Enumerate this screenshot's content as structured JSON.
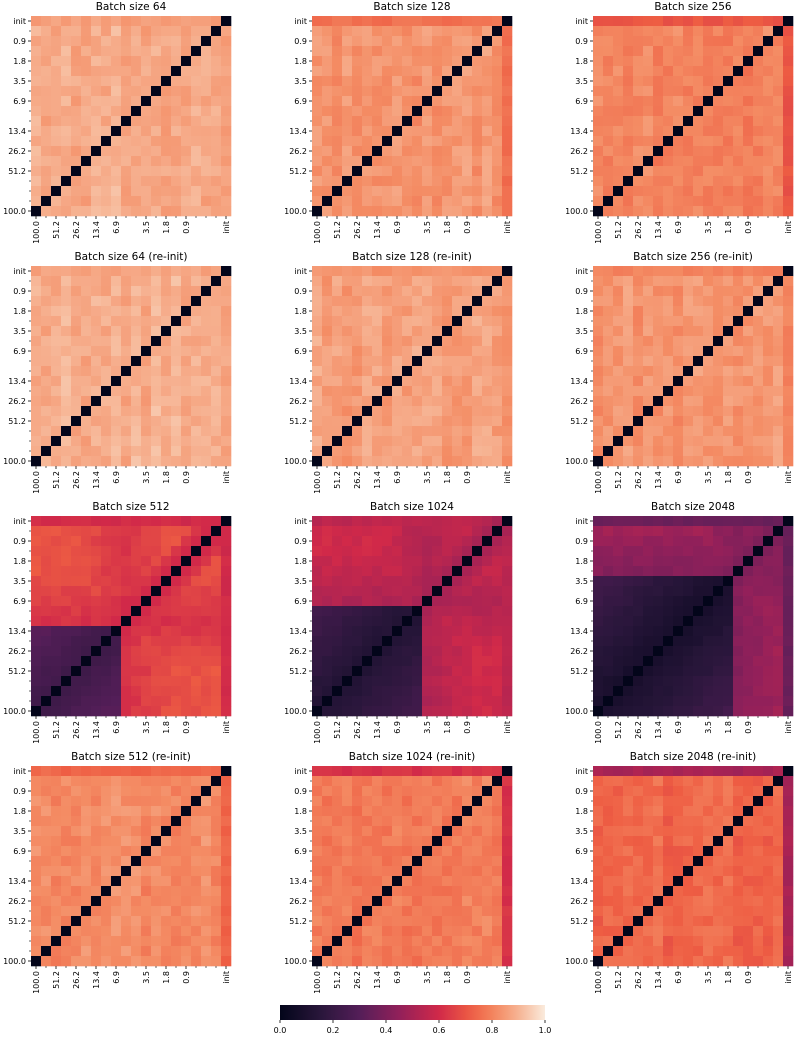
{
  "chart_data": {
    "type": "heatmap",
    "layout": "4x3 grid",
    "ticks_y": [
      "init",
      "0.9",
      "1.8",
      "3.5",
      "6.9",
      "13.4",
      "26.2",
      "51.2",
      "100.0"
    ],
    "ticks_x": [
      "100.0",
      "51.2",
      "26.2",
      "13.4",
      "6.9",
      "3.5",
      "1.8",
      "0.9",
      "init"
    ],
    "grid": false,
    "colorbar": {
      "orientation": "horizontal",
      "placement": "bottom-center",
      "range": [
        0.0,
        1.0
      ],
      "ticks": [
        "0.0",
        "0.2",
        "0.4",
        "0.6",
        "0.8",
        "1.0"
      ],
      "colormap": "rocket"
    },
    "panels": [
      {
        "title": "Batch size 64",
        "pattern": "uniform",
        "base": 0.88,
        "init_row": 0.86,
        "diagonal": 0.0
      },
      {
        "title": "Batch size 128",
        "pattern": "uniform",
        "base": 0.84,
        "init_row": 0.76,
        "diagonal": 0.0
      },
      {
        "title": "Batch size 256",
        "pattern": "uniform",
        "base": 0.8,
        "init_row": 0.7,
        "diagonal": 0.0
      },
      {
        "title": "Batch size 64 (re-init)",
        "pattern": "uniform",
        "base": 0.89,
        "init_row": 0.87,
        "diagonal": 0.0
      },
      {
        "title": "Batch size 128 (re-init)",
        "pattern": "uniform",
        "base": 0.86,
        "init_row": 0.83,
        "diagonal": 0.0
      },
      {
        "title": "Batch size 256 (re-init)",
        "pattern": "uniform",
        "base": 0.84,
        "init_row": 0.8,
        "diagonal": 0.0
      },
      {
        "title": "Batch size 512",
        "pattern": "block",
        "base": 0.62,
        "block_low": 0.22,
        "block_extent": "100.0–6.9",
        "init_row": 0.6,
        "diagonal": 0.0
      },
      {
        "title": "Batch size 1024",
        "pattern": "block",
        "base": 0.52,
        "block_low": 0.12,
        "block_extent": "100.0–3.5",
        "init_row": 0.55,
        "diagonal": 0.0
      },
      {
        "title": "Batch size 2048",
        "pattern": "block",
        "base": 0.42,
        "block_low": 0.08,
        "block_extent": "100.0–1.8",
        "init_row": 0.35,
        "diagonal": 0.0
      },
      {
        "title": "Batch size 512 (re-init)",
        "pattern": "uniform",
        "base": 0.82,
        "init_row": 0.74,
        "diagonal": 0.0
      },
      {
        "title": "Batch size 1024 (re-init)",
        "pattern": "uniform",
        "base": 0.79,
        "init_row": 0.62,
        "diagonal": 0.0
      },
      {
        "title": "Batch size 2048 (re-init)",
        "pattern": "uniform",
        "base": 0.74,
        "init_row": 0.5,
        "diagonal": 0.0
      }
    ]
  }
}
